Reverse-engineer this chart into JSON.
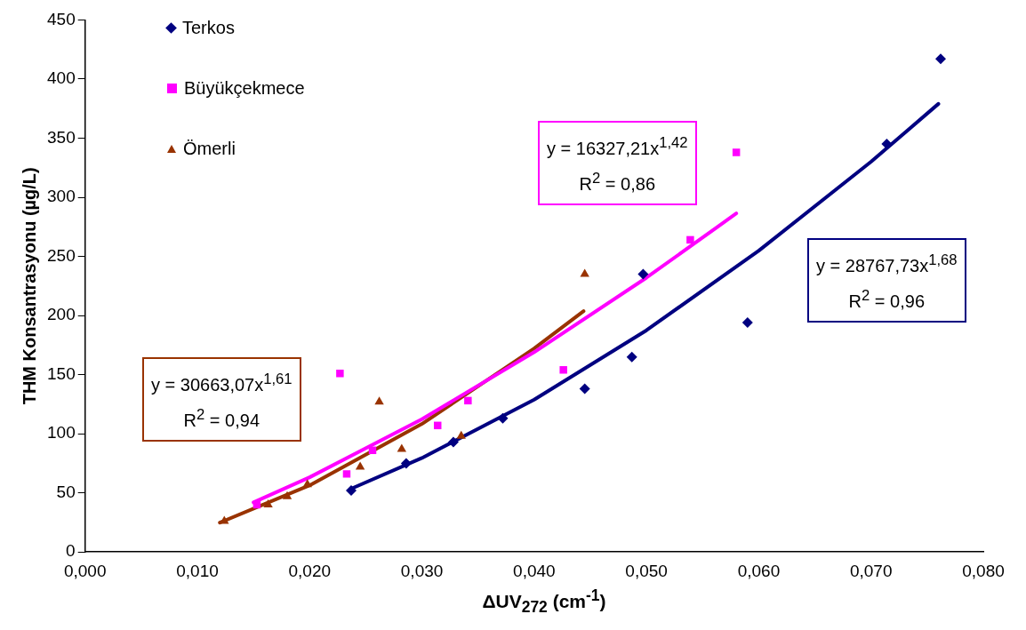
{
  "chart_data": {
    "type": "scatter",
    "xlabel": "ΔUV$_{272}$ (cm$^{-1}$)",
    "ylabel": "THM Konsantrasyonu (µg/L)",
    "xlim": [
      0,
      0.08
    ],
    "xticks": [
      {
        "value": 0,
        "label": "0,000"
      },
      {
        "value": 0.01,
        "label": "0,010"
      },
      {
        "value": 0.02,
        "label": "0,020"
      },
      {
        "value": 0.03,
        "label": "0,030"
      },
      {
        "value": 0.04,
        "label": "0,040"
      },
      {
        "value": 0.05,
        "label": "0,050"
      },
      {
        "value": 0.06,
        "label": "0,060"
      },
      {
        "value": 0.07,
        "label": "0,070"
      },
      {
        "value": 0.08,
        "label": "0,080"
      }
    ],
    "ylim": [
      0,
      450
    ],
    "yticks": [
      0,
      50,
      100,
      150,
      200,
      250,
      300,
      350,
      400,
      450
    ],
    "grid": false,
    "legend": "top left",
    "series": [
      {
        "name": "Terkos",
        "marker": "diamond",
        "color": "#000080",
        "x": [
          0.0237,
          0.0286,
          0.0328,
          0.0372,
          0.0445,
          0.0487,
          0.0497,
          0.059,
          0.0714,
          0.0762
        ],
        "values": [
          52,
          75,
          93,
          113,
          138,
          165,
          235,
          194,
          345,
          417
        ]
      },
      {
        "name": "Büyükçekmece",
        "marker": "square",
        "color": "#ff00ff",
        "x": [
          0.0153,
          0.0227,
          0.0233,
          0.0256,
          0.0314,
          0.0341,
          0.0426,
          0.0539,
          0.058
        ],
        "values": [
          40,
          151,
          66,
          86,
          107,
          128,
          154,
          264,
          338
        ]
      },
      {
        "name": "Ömerli",
        "marker": "triangle",
        "color": "#993300",
        "x": [
          0.0124,
          0.0163,
          0.018,
          0.0198,
          0.0245,
          0.0262,
          0.0282,
          0.0335,
          0.0445
        ],
        "values": [
          26,
          40,
          47,
          57,
          72,
          127,
          87,
          98,
          235
        ]
      },
      {
        "type": "line",
        "marker": "none",
        "color": "#000080",
        "x": [
          0.0237,
          0.03,
          0.04,
          0.05,
          0.06,
          0.07,
          0.076
        ],
        "values": [
          53.5,
          79.5,
          128.9,
          187.5,
          254.8,
          330.1,
          379
        ]
      },
      {
        "type": "line",
        "marker": "none",
        "color": "#ff00ff",
        "x": [
          0.015,
          0.02,
          0.03,
          0.04,
          0.05,
          0.058
        ],
        "values": [
          42,
          63.2,
          112.3,
          169,
          232,
          286.3
        ]
      },
      {
        "type": "line",
        "marker": "none",
        "color": "#993300",
        "x": [
          0.012,
          0.02,
          0.03,
          0.04,
          0.0444
        ],
        "values": [
          24.8,
          56.4,
          108.3,
          172.2,
          203.7
        ]
      }
    ],
    "annotations": [
      "y = 28767,73x$^{1,68}$",
      "R$^{2}$ = 0,96",
      "y = 16327,21x$^{1,42}$",
      "R$^{2}$ = 0,86",
      "y = 30663,07x$^{1,61}$",
      "R$^{2}$ = 0,94"
    ]
  }
}
